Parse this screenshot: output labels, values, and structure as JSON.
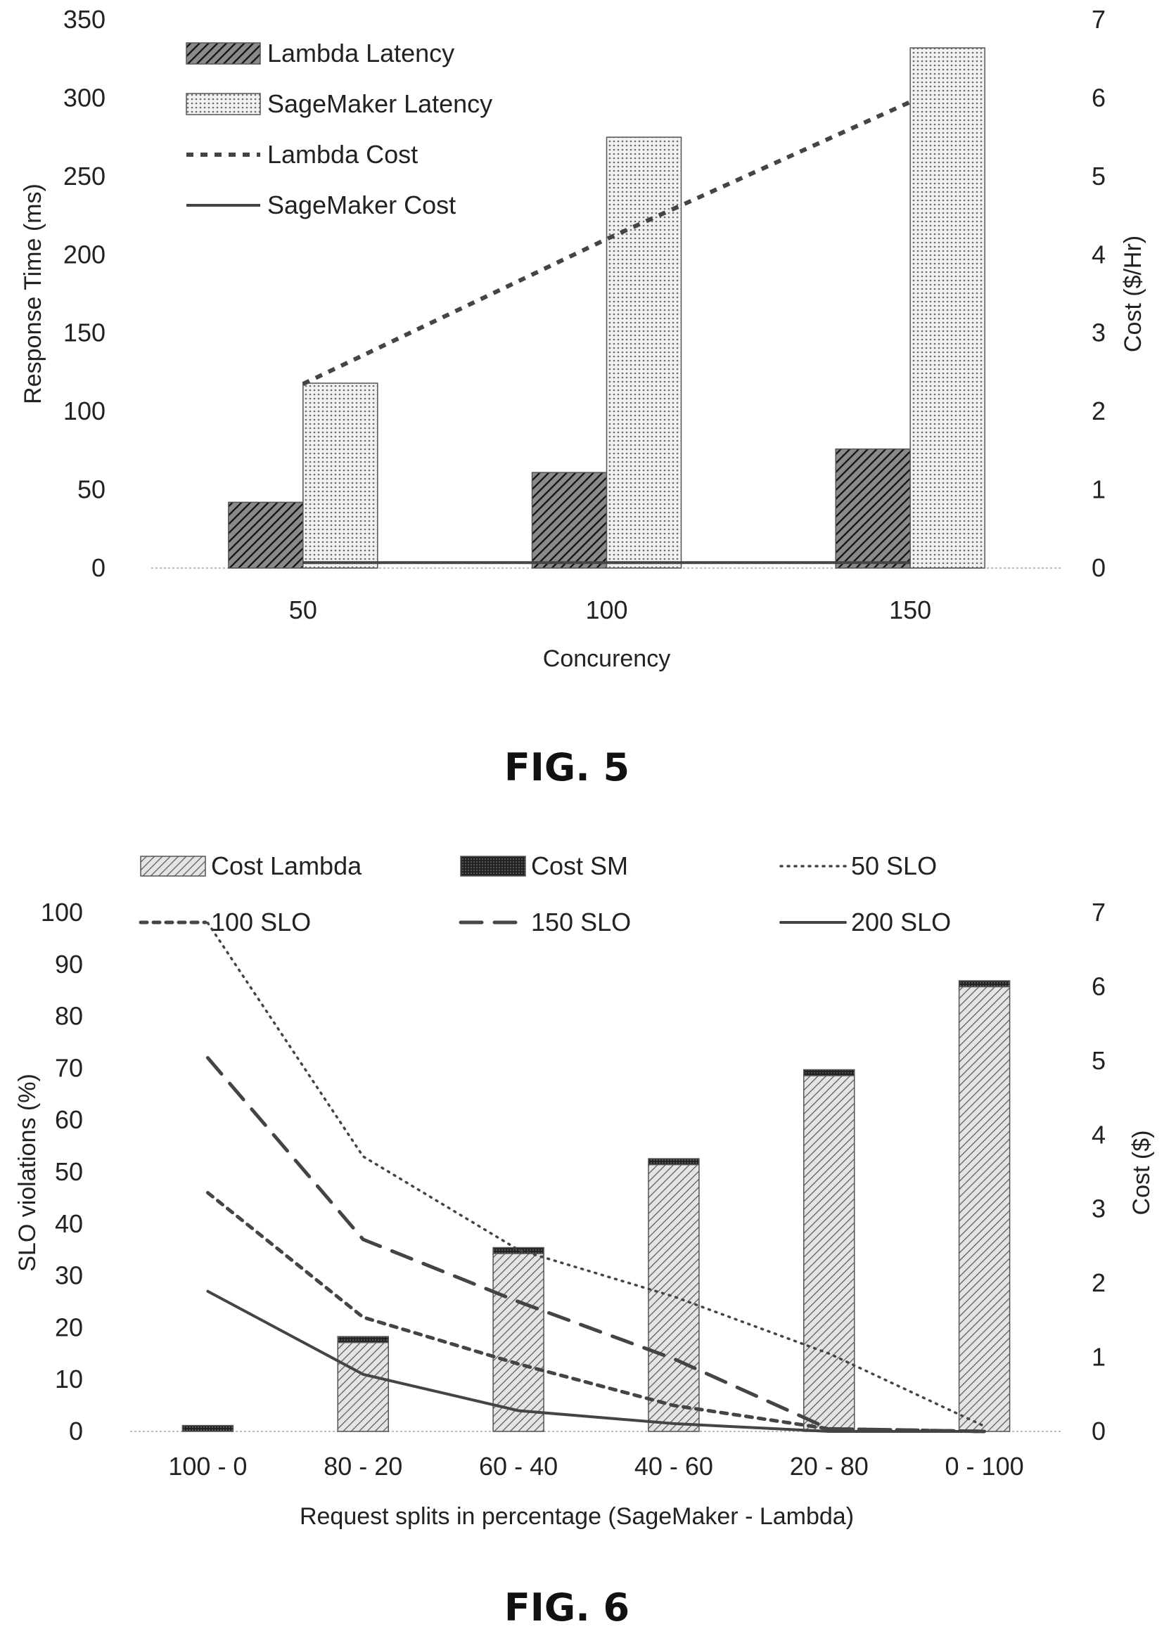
{
  "chart_data": [
    {
      "type": "bar",
      "figure_label": "FIG. 5",
      "categories": [
        "50",
        "100",
        "150"
      ],
      "xlabel": "Concurency",
      "ylabel": "Response Time (ms)",
      "y2label": "Cost ($/Hr)",
      "ylim": [
        0,
        350
      ],
      "y2lim": [
        0,
        7
      ],
      "yticks": [
        "0",
        "50",
        "100",
        "150",
        "200",
        "250",
        "300",
        "350"
      ],
      "y2ticks": [
        "0",
        "1",
        "2",
        "3",
        "4",
        "5",
        "6",
        "7"
      ],
      "legend_position": "top-left",
      "grid": false,
      "bar_series": [
        {
          "name": "Lambda Latency",
          "values": [
            42,
            61,
            76
          ],
          "pattern": "dense-diagonal"
        },
        {
          "name": "SageMaker Latency",
          "values": [
            118,
            275,
            332
          ],
          "pattern": "light-dots"
        }
      ],
      "line_series": [
        {
          "name": "Lambda Cost",
          "values": [
            2.35,
            4.2,
            5.95
          ],
          "style": "dashed",
          "axis": "right"
        },
        {
          "name": "SageMaker Cost",
          "values": [
            0.07,
            0.07,
            0.07
          ],
          "style": "solid",
          "axis": "right"
        }
      ]
    },
    {
      "type": "bar",
      "figure_label": "FIG. 6",
      "categories": [
        "100 - 0",
        "80 - 20",
        "60 - 40",
        "40 - 60",
        "20 - 80",
        "0 - 100"
      ],
      "xlabel": "Request splits in percentage (SageMaker - Lambda)",
      "ylabel": "SLO violations (%)",
      "y2label": "Cost ($)",
      "ylim": [
        0,
        100
      ],
      "y2lim": [
        0,
        7
      ],
      "yticks": [
        "0",
        "10",
        "20",
        "30",
        "40",
        "50",
        "60",
        "70",
        "80",
        "90",
        "100"
      ],
      "y2ticks": [
        "0",
        "1",
        "2",
        "3",
        "4",
        "5",
        "6",
        "7"
      ],
      "legend_position": "top",
      "grid": false,
      "stack_series": [
        {
          "name": "Cost Lambda",
          "values": [
            0,
            1.2,
            2.4,
            3.6,
            4.8,
            6.0
          ],
          "pattern": "diagonal"
        },
        {
          "name": "Cost SM",
          "values": [
            0.08,
            0.08,
            0.08,
            0.08,
            0.08,
            0.08
          ],
          "pattern": "dark"
        }
      ],
      "line_series": [
        {
          "name": "50 SLO",
          "values": [
            98,
            53,
            35,
            26,
            15,
            1
          ],
          "style": "dotted"
        },
        {
          "name": "100 SLO",
          "values": [
            46,
            22,
            13,
            5,
            0.5,
            0
          ],
          "style": "short-dash"
        },
        {
          "name": "150 SLO",
          "values": [
            72,
            37,
            25,
            14,
            0.5,
            0
          ],
          "style": "long-dash"
        },
        {
          "name": "200 SLO",
          "values": [
            27,
            11,
            4,
            1.5,
            0,
            0
          ],
          "style": "solid"
        }
      ]
    }
  ]
}
